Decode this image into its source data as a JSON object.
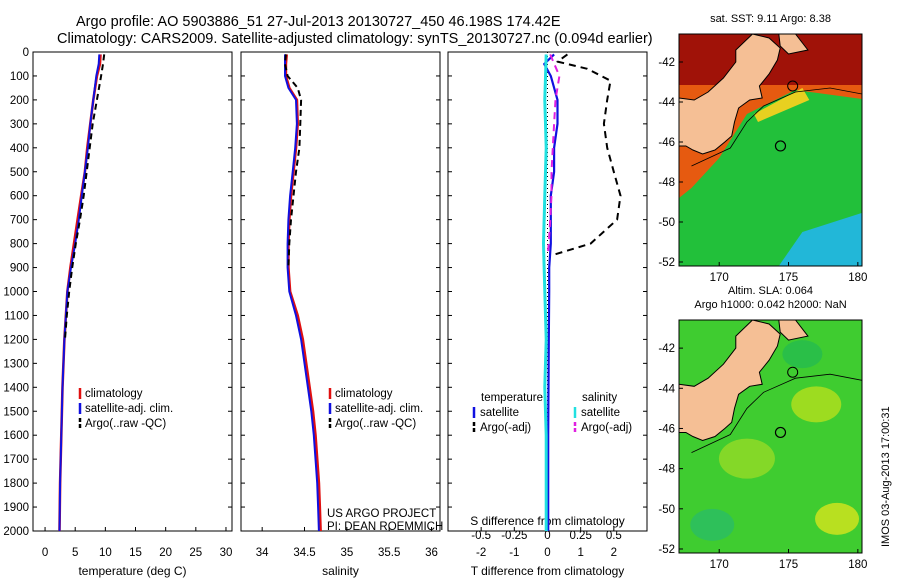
{
  "header": {
    "title_line1": "Argo profile: AO 5903886_51 27-Jul-2013 20130727_450 46.198S 174.42E",
    "title_line2": "Climatology: CARS2009. Satellite-adjusted climatology: synTS_20130727.nc (0.094d earlier)"
  },
  "y_ticks": [
    "0",
    "100",
    "200",
    "300",
    "400",
    "500",
    "600",
    "700",
    "800",
    "900",
    "1000",
    "1100",
    "1200",
    "1300",
    "1400",
    "1500",
    "1600",
    "1700",
    "1800",
    "1900",
    "2000"
  ],
  "colors": {
    "climatology": "#e01010",
    "satellite": "#1010e0",
    "argo": "#000000",
    "salinity_sat": "#20e0e0",
    "salinity_argo": "#e020e0"
  },
  "chart_data": [
    {
      "type": "line",
      "xlabel": "temperature (deg C)",
      "xlim": [
        -2,
        31
      ],
      "ylim": [
        0,
        2000
      ],
      "x_ticks": [
        "0",
        "5",
        "10",
        "15",
        "20",
        "25",
        "30"
      ],
      "legend": [
        "climatology",
        "satellite-adj. clim.",
        "Argo(..raw -QC)"
      ],
      "series": [
        {
          "name": "climatology",
          "depth": [
            10,
            50,
            100,
            200,
            300,
            400,
            500,
            600,
            700,
            800,
            900,
            1000,
            1200,
            1400,
            1600,
            1800,
            2000
          ],
          "values": [
            9.2,
            9.1,
            8.6,
            8.0,
            7.5,
            7.0,
            6.6,
            6.0,
            5.4,
            4.8,
            4.2,
            3.7,
            3.2,
            2.9,
            2.7,
            2.5,
            2.4
          ]
        },
        {
          "name": "satellite-adj. clim.",
          "depth": [
            10,
            50,
            100,
            200,
            300,
            400,
            500,
            600,
            700,
            800,
            900,
            1000,
            1200,
            1400,
            1600,
            1800,
            2000
          ],
          "values": [
            9.0,
            8.9,
            8.5,
            8.0,
            7.5,
            7.1,
            6.6,
            6.1,
            5.6,
            5.0,
            4.3,
            3.7,
            3.2,
            2.9,
            2.7,
            2.5,
            2.4
          ]
        },
        {
          "name": "Argo(..raw -QC)",
          "depth": [
            10,
            50,
            100,
            200,
            300,
            400,
            500,
            600,
            700,
            800,
            900,
            1000,
            1100,
            1200
          ],
          "values": [
            9.8,
            9.6,
            9.3,
            8.6,
            7.9,
            7.4,
            6.9,
            6.4,
            5.8,
            5.1,
            4.5,
            4.0,
            3.6,
            3.3
          ]
        }
      ]
    },
    {
      "type": "line",
      "xlabel": "salinity",
      "xlim": [
        33.75,
        36.1
      ],
      "ylim": [
        0,
        2000
      ],
      "x_ticks": [
        "34",
        "34.5",
        "35",
        "35.5",
        "36"
      ],
      "legend": [
        "climatology",
        "satellite-adj. clim.",
        "Argo(..raw -QC)"
      ],
      "annotation": [
        "US ARGO PROJECT",
        "PI: DEAN ROEMMICH"
      ],
      "series": [
        {
          "name": "climatology",
          "depth": [
            10,
            50,
            100,
            150,
            200,
            300,
            400,
            500,
            600,
            700,
            800,
            900,
            1000,
            1100,
            1200,
            1300,
            1400,
            1500,
            1600,
            1700,
            1800,
            1900,
            2000
          ],
          "values": [
            34.29,
            34.28,
            34.28,
            34.32,
            34.41,
            34.42,
            34.4,
            34.37,
            34.34,
            34.32,
            34.31,
            34.31,
            34.33,
            34.42,
            34.48,
            34.52,
            34.56,
            34.6,
            34.63,
            34.65,
            34.67,
            34.68,
            34.69
          ]
        },
        {
          "name": "satellite-adj. clim.",
          "depth": [
            10,
            50,
            100,
            150,
            200,
            300,
            400,
            500,
            600,
            700,
            800,
            900,
            1000,
            1100,
            1200,
            1300,
            1400,
            1500,
            1600,
            1700,
            1800,
            1900,
            2000
          ],
          "values": [
            34.27,
            34.27,
            34.27,
            34.31,
            34.4,
            34.41,
            34.39,
            34.36,
            34.33,
            34.31,
            34.3,
            34.3,
            34.32,
            34.4,
            34.46,
            34.5,
            34.54,
            34.58,
            34.61,
            34.63,
            34.65,
            34.66,
            34.67
          ]
        },
        {
          "name": "Argo(..raw -QC)",
          "depth": [
            10,
            50,
            100,
            150,
            200,
            300,
            400,
            500,
            600,
            700,
            800,
            900
          ],
          "values": [
            34.28,
            34.27,
            34.3,
            34.42,
            34.46,
            34.45,
            34.44,
            34.4,
            34.37,
            34.34,
            34.32,
            34.31
          ]
        }
      ]
    },
    {
      "type": "line",
      "xlabel": "T difference from climatology",
      "top_label": "S difference from climatology",
      "xlim": [
        -3,
        3
      ],
      "ylim": [
        0,
        2000
      ],
      "x_ticks": [
        "-2",
        "-1",
        "0",
        "1",
        "2"
      ],
      "top_ticks": [
        "-0.5",
        "-0.25",
        "0",
        "0.25",
        "0.5"
      ],
      "legend_headers": [
        "temperature",
        "salinity"
      ],
      "legend_temperature": [
        "satellite",
        "Argo(-adj)"
      ],
      "legend_salinity": [
        "satellite",
        "Argo(-adj)"
      ],
      "series": [
        {
          "name": "temperature satellite",
          "depth": [
            10,
            50,
            100,
            200,
            300,
            400,
            500,
            600,
            700,
            800,
            900,
            1000,
            1200,
            1400,
            1600,
            1800,
            2000
          ],
          "values": [
            0.2,
            -0.1,
            0.1,
            0.3,
            0.3,
            0.2,
            0.2,
            0.1,
            0.1,
            0.1,
            0.05,
            0.05,
            0.04,
            0.03,
            0.02,
            0.02,
            0.02
          ]
        },
        {
          "name": "temperature Argo(-adj)",
          "depth": [
            10,
            40,
            70,
            120,
            200,
            300,
            400,
            500,
            600,
            700,
            800,
            850
          ],
          "values": [
            0.6,
            0.3,
            1.2,
            1.9,
            1.8,
            1.7,
            1.8,
            2.0,
            2.2,
            2.1,
            1.3,
            0.1
          ]
        },
        {
          "name": "salinity satellite",
          "depth": [
            10,
            200,
            400,
            600,
            800,
            1000,
            1200,
            1400,
            1600,
            1800,
            2000
          ],
          "values": [
            -0.01,
            -0.02,
            -0.01,
            -0.02,
            -0.03,
            -0.02,
            -0.01,
            -0.02,
            -0.01,
            -0.01,
            -0.01
          ]
        },
        {
          "name": "salinity Argo(-adj)",
          "depth": [
            10,
            100,
            200,
            300,
            400,
            500,
            600,
            700,
            800,
            850
          ],
          "values": [
            0.02,
            0.09,
            0.06,
            0.05,
            0.04,
            0.03,
            0.03,
            0.02,
            0.01,
            0.0
          ]
        }
      ]
    }
  ],
  "maps": [
    {
      "title_lines": [
        "sat. SST: 9.11 Argo: 8.38"
      ],
      "x_ticks": [
        "170",
        "175",
        "180"
      ],
      "y_ticks": [
        "-42",
        "-44",
        "-46",
        "-48",
        "-50",
        "-52"
      ]
    },
    {
      "title_lines": [
        "Altim. SLA: 0.064",
        "Argo h1000: 0.042 h2000: NaN"
      ],
      "x_ticks": [
        "170",
        "175",
        "180"
      ],
      "y_ticks": [
        "-42",
        "-44",
        "-46",
        "-48",
        "-50",
        "-52"
      ]
    }
  ],
  "side_note": "IMOS 03-Aug-2013 17:00:31"
}
